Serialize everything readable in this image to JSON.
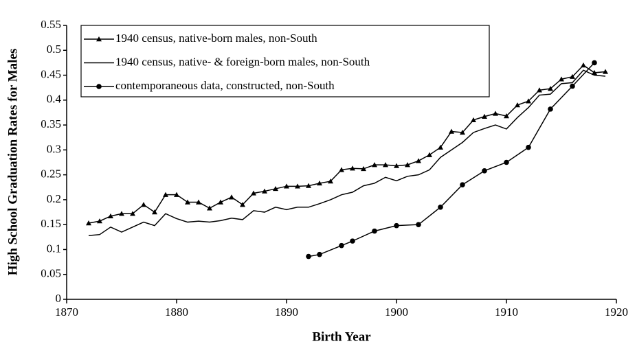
{
  "chart_data": {
    "type": "line",
    "xlabel": "Birth Year",
    "ylabel": "High School Graduation Rates for Males",
    "xlim": [
      1870,
      1920
    ],
    "xticks": [
      1870,
      1880,
      1890,
      1900,
      1910,
      1920
    ],
    "ylim": [
      0,
      0.55
    ],
    "yticks": [
      0,
      0.05,
      0.1,
      0.15,
      0.2,
      0.25,
      0.3,
      0.35,
      0.4,
      0.45,
      0.5,
      0.55
    ],
    "legend": "upper left",
    "series": [
      {
        "name": "1940 census, native-born males, non-South",
        "color": "#000",
        "marker": "triangle",
        "x": [
          1872,
          1873,
          1874,
          1875,
          1876,
          1877,
          1878,
          1879,
          1880,
          1881,
          1882,
          1883,
          1884,
          1885,
          1886,
          1887,
          1888,
          1889,
          1890,
          1891,
          1892,
          1893,
          1894,
          1895,
          1896,
          1897,
          1898,
          1899,
          1900,
          1901,
          1902,
          1903,
          1904,
          1905,
          1906,
          1907,
          1908,
          1909,
          1910,
          1911,
          1912,
          1913,
          1914,
          1915,
          1916,
          1917,
          1918,
          1919
        ],
        "values": [
          0.153,
          0.157,
          0.167,
          0.172,
          0.172,
          0.19,
          0.175,
          0.21,
          0.21,
          0.195,
          0.195,
          0.183,
          0.195,
          0.205,
          0.19,
          0.213,
          0.217,
          0.222,
          0.227,
          0.227,
          0.228,
          0.233,
          0.237,
          0.26,
          0.263,
          0.262,
          0.27,
          0.27,
          0.268,
          0.27,
          0.278,
          0.29,
          0.305,
          0.337,
          0.335,
          0.36,
          0.367,
          0.373,
          0.368,
          0.39,
          0.398,
          0.42,
          0.423,
          0.442,
          0.447,
          0.47,
          0.455,
          0.457
        ]
      },
      {
        "name": "1940 census, native- & foreign-born males, non-South",
        "color": "#000",
        "marker": "none",
        "x": [
          1872,
          1873,
          1874,
          1875,
          1876,
          1877,
          1878,
          1879,
          1880,
          1881,
          1882,
          1883,
          1884,
          1885,
          1886,
          1887,
          1888,
          1889,
          1890,
          1891,
          1892,
          1893,
          1894,
          1895,
          1896,
          1897,
          1898,
          1899,
          1900,
          1901,
          1902,
          1903,
          1904,
          1905,
          1906,
          1907,
          1908,
          1909,
          1910,
          1911,
          1912,
          1913,
          1914,
          1915,
          1916,
          1917,
          1918,
          1919
        ],
        "values": [
          0.128,
          0.13,
          0.145,
          0.135,
          0.145,
          0.155,
          0.148,
          0.172,
          0.162,
          0.155,
          0.157,
          0.155,
          0.158,
          0.163,
          0.16,
          0.178,
          0.175,
          0.185,
          0.18,
          0.185,
          0.185,
          0.192,
          0.2,
          0.21,
          0.215,
          0.228,
          0.233,
          0.245,
          0.238,
          0.247,
          0.25,
          0.26,
          0.285,
          0.3,
          0.315,
          0.335,
          0.343,
          0.35,
          0.342,
          0.365,
          0.385,
          0.41,
          0.412,
          0.433,
          0.435,
          0.46,
          0.45,
          0.448
        ]
      },
      {
        "name": "contemporaneous data, constructed, non-South",
        "color": "#000",
        "marker": "circle",
        "x": [
          1892,
          1893,
          1895,
          1896,
          1898,
          1900,
          1902,
          1904,
          1906,
          1908,
          1910,
          1912,
          1914,
          1916,
          1918
        ],
        "values": [
          0.086,
          0.09,
          0.108,
          0.117,
          0.137,
          0.148,
          0.15,
          0.185,
          0.23,
          0.258,
          0.275,
          0.305,
          0.382,
          0.428,
          0.475
        ]
      }
    ]
  }
}
